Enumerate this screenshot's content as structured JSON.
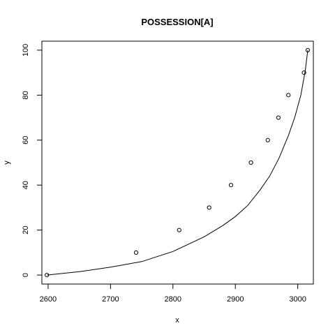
{
  "chart_data": {
    "type": "scatter",
    "title": "POSSESSION[A]",
    "xlabel": "x",
    "ylabel": "y",
    "xlim": [
      2590,
      3025
    ],
    "ylim": [
      -4,
      104
    ],
    "x_ticks": [
      2600,
      2700,
      2800,
      2900,
      3000
    ],
    "y_ticks": [
      0,
      20,
      40,
      60,
      80,
      100
    ],
    "x_tick_labels": [
      "2600",
      "2700",
      "2800",
      "2900",
      "3000"
    ],
    "y_tick_labels": [
      "0",
      "20",
      "40",
      "60",
      "80",
      "100"
    ],
    "grid": false,
    "series": [
      {
        "kind": "points",
        "marker": "open-circle",
        "x": [
          2598,
          2741,
          2810,
          2858,
          2893,
          2925,
          2952,
          2969,
          2985,
          3010,
          3016
        ],
        "y": [
          0,
          10,
          20,
          30,
          40,
          50,
          60,
          70,
          80,
          90,
          100
        ]
      },
      {
        "kind": "line",
        "x": [
          2598,
          2650,
          2700,
          2750,
          2800,
          2850,
          2880,
          2900,
          2920,
          2940,
          2955,
          2970,
          2985,
          2995,
          3005,
          3012,
          3016
        ],
        "y": [
          0,
          1.5,
          3.5,
          6,
          10.5,
          17,
          22,
          26,
          31,
          38,
          44,
          52,
          62,
          70,
          80,
          91,
          100
        ]
      }
    ]
  }
}
